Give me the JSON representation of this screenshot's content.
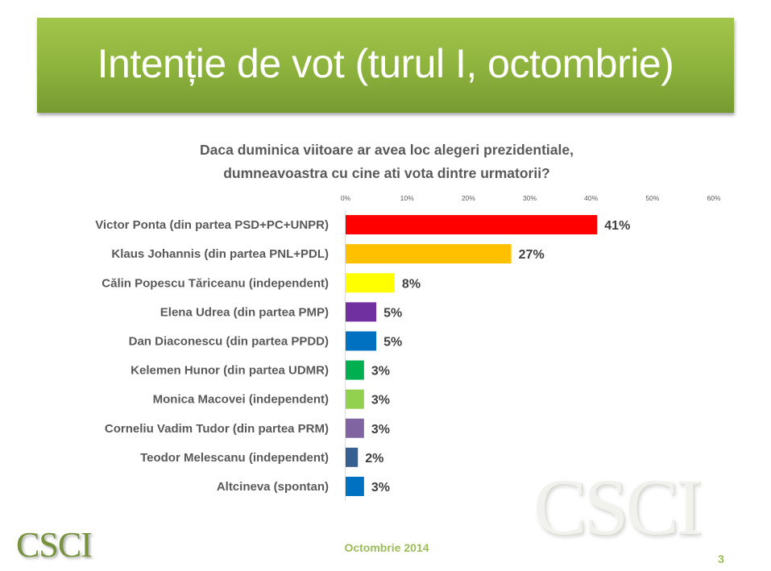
{
  "slide": {
    "title": "Intenție de vot (turul I, octombrie)",
    "subtitle_line1": "Daca duminica viitoare ar avea loc alegeri prezidentiale,",
    "subtitle_line2": "dumneavoastra cu cine ati vota dintre urmatorii?",
    "footer_date": "Octombrie 2014",
    "page_number": "3",
    "logo_text": "CSCI",
    "watermark_text": "CSCI",
    "accent_color": "#9bbb59"
  },
  "chart_data": {
    "type": "bar",
    "orientation": "horizontal",
    "title": "Daca duminica viitoare ar avea loc alegeri prezidentiale, dumneavoastra cu cine ati vota dintre urmatorii?",
    "xlabel": "",
    "ylabel": "",
    "xlim": [
      0,
      60
    ],
    "x_ticks": [
      "0%",
      "10%",
      "20%",
      "30%",
      "40%",
      "50%",
      "60%"
    ],
    "x_tick_values": [
      0,
      10,
      20,
      30,
      40,
      50,
      60
    ],
    "x_axis_position": "top",
    "grid": false,
    "legend": "none",
    "value_suffix": "%",
    "categories": [
      "Victor Ponta (din partea PSD+PC+UNPR)",
      "Klaus Johannis (din partea PNL+PDL)",
      "Călin Popescu Tăriceanu (independent)",
      "Elena Udrea (din partea PMP)",
      "Dan Diaconescu (din partea PPDD)",
      "Kelemen Hunor (din partea UDMR)",
      "Monica Macovei (independent)",
      "Corneliu Vadim Tudor (din partea PRM)",
      "Teodor Melescanu (independent)",
      "Altcineva (spontan)"
    ],
    "values": [
      41,
      27,
      8,
      5,
      5,
      3,
      3,
      3,
      2,
      3
    ],
    "data_labels": [
      "41%",
      "27%",
      "8%",
      "5%",
      "5%",
      "3%",
      "3%",
      "3%",
      "2%",
      "3%"
    ],
    "colors": [
      "#ff0000",
      "#ffc000",
      "#ffff00",
      "#7030a0",
      "#0070c0",
      "#00b050",
      "#92d050",
      "#8064a2",
      "#366092",
      "#0070c0"
    ]
  }
}
